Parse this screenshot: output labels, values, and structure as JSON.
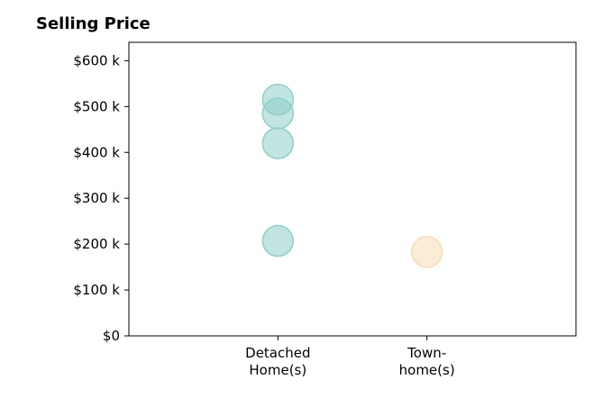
{
  "chart_data": {
    "type": "scatter",
    "title": "Selling Price",
    "categories": [
      "Detached\nHome(s)",
      "Town-\nhome(s)"
    ],
    "y_tick_labels": [
      "$0",
      "$100 k",
      "$200 k",
      "$300 k",
      "$400 k",
      "$500 k",
      "$600 k"
    ],
    "y_ticks": [
      0,
      100000,
      200000,
      300000,
      400000,
      500000,
      600000
    ],
    "ylim": [
      0,
      640000
    ],
    "xlim": [
      -1,
      2
    ],
    "grid": false,
    "series": [
      {
        "category": "Detached\nHome(s)",
        "color": "#8fcfc9",
        "values": [
          515000,
          485000,
          420000,
          207000
        ]
      },
      {
        "category": "Town-\nhome(s)",
        "color": "#f5deb3",
        "values": [
          183000
        ]
      }
    ]
  }
}
